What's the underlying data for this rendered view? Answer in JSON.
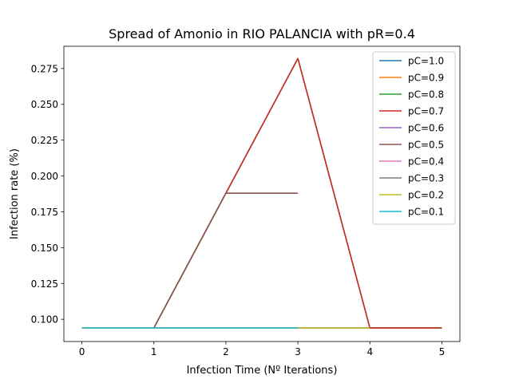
{
  "chart_data": {
    "type": "line",
    "title": "Spread of Amonio in RIO PALANCIA with pR=0.4",
    "xlabel": "Infection Time (Nº Iterations)",
    "ylabel": "Infection rate (%)",
    "xlim": [
      -0.25,
      5.25
    ],
    "ylim": [
      0.0845,
      0.2905
    ],
    "x_ticks": [
      0,
      1,
      2,
      3,
      4,
      5
    ],
    "y_ticks": [
      0.1,
      0.125,
      0.15,
      0.175,
      0.2,
      0.225,
      0.25,
      0.275
    ],
    "y_tick_labels": [
      "0.100",
      "0.125",
      "0.150",
      "0.175",
      "0.200",
      "0.225",
      "0.250",
      "0.275"
    ],
    "grid": false,
    "legend_position": "top-right",
    "series": [
      {
        "name": "pC=1.0",
        "color": "#1f77b4",
        "x": [
          0,
          1,
          2,
          3,
          4,
          5
        ],
        "y": [
          0.094,
          0.094,
          0.188,
          0.282,
          0.094,
          0.094
        ]
      },
      {
        "name": "pC=0.9",
        "color": "#ff7f0e",
        "x": [
          0,
          1,
          2,
          3,
          4,
          5
        ],
        "y": [
          0.094,
          0.094,
          0.188,
          0.282,
          0.094,
          0.094
        ]
      },
      {
        "name": "pC=0.8",
        "color": "#2ca02c",
        "x": [
          0,
          1,
          2,
          3,
          4,
          5
        ],
        "y": [
          0.094,
          0.094,
          0.188,
          0.282,
          0.094,
          0.094
        ]
      },
      {
        "name": "pC=0.7",
        "color": "#d62728",
        "x": [
          0,
          1,
          2,
          3,
          4,
          5
        ],
        "y": [
          0.094,
          0.094,
          0.188,
          0.282,
          0.094,
          0.094
        ]
      },
      {
        "name": "pC=0.6",
        "color": "#9467bd",
        "x": [
          0,
          1,
          2,
          3
        ],
        "y": [
          0.094,
          0.094,
          0.188,
          0.188
        ]
      },
      {
        "name": "pC=0.5",
        "color": "#8c564b",
        "x": [
          0,
          1,
          2,
          3
        ],
        "y": [
          0.094,
          0.094,
          0.188,
          0.188
        ]
      },
      {
        "name": "pC=0.4",
        "color": "#e377c2",
        "x": [
          0,
          1,
          2,
          3,
          4
        ],
        "y": [
          0.094,
          0.094,
          0.094,
          0.094,
          0.094
        ]
      },
      {
        "name": "pC=0.3",
        "color": "#7f7f7f",
        "x": [
          0,
          1,
          2,
          3,
          4
        ],
        "y": [
          0.094,
          0.094,
          0.094,
          0.094,
          0.094
        ]
      },
      {
        "name": "pC=0.2",
        "color": "#bcbd22",
        "x": [
          0,
          1,
          2,
          3,
          4
        ],
        "y": [
          0.094,
          0.094,
          0.094,
          0.094,
          0.094
        ]
      },
      {
        "name": "pC=0.1",
        "color": "#17becf",
        "x": [
          0,
          1,
          2,
          3
        ],
        "y": [
          0.094,
          0.094,
          0.094,
          0.094
        ]
      }
    ]
  }
}
